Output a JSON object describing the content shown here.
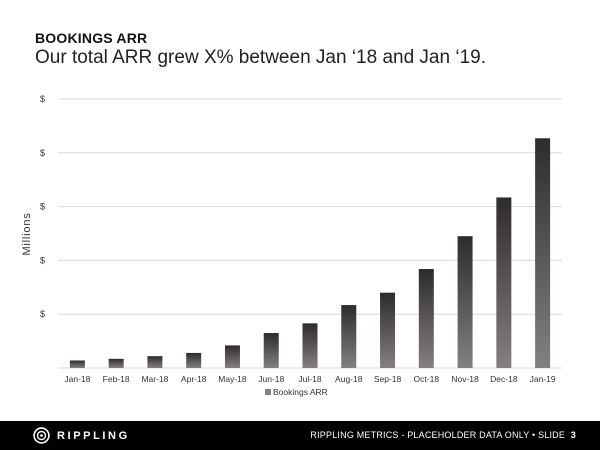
{
  "slide": {
    "kicker": "BOOKINGS ARR",
    "title": "Our total ARR grew X% between Jan ‘18 and Jan ‘19."
  },
  "chart_data": {
    "type": "bar",
    "title": "",
    "xlabel": "",
    "ylabel": "Millions",
    "y_tick_labels": [
      "$",
      "$",
      "$",
      "$",
      "$"
    ],
    "categories": [
      "Jan-18",
      "Feb-18",
      "Mar-18",
      "Apr-18",
      "May-18",
      "Jun-18",
      "Jul-18",
      "Aug-18",
      "Sep-18",
      "Oct-18",
      "Nov-18",
      "Dec-18",
      "Jan-19"
    ],
    "series": [
      {
        "name": "Bookings ARR",
        "values": [
          0.14,
          0.17,
          0.22,
          0.28,
          0.42,
          0.65,
          0.83,
          1.17,
          1.4,
          1.84,
          2.45,
          3.17,
          4.27
        ]
      }
    ],
    "ylim": [
      0,
      5
    ],
    "grid": true,
    "legend": "bottom-center",
    "colors": {
      "bar_top": "#2e2b2b",
      "bar_bottom": "#858080",
      "grid": "#d9d9d9"
    }
  },
  "footer": {
    "brand": "RIPPLING",
    "brand_icon": "rippling-logo-icon",
    "label": "RIPPLING METRICS - PLACEHOLDER DATA ONLY",
    "separator": "•",
    "slide_prefix": "SLIDE",
    "page_number": "3"
  }
}
